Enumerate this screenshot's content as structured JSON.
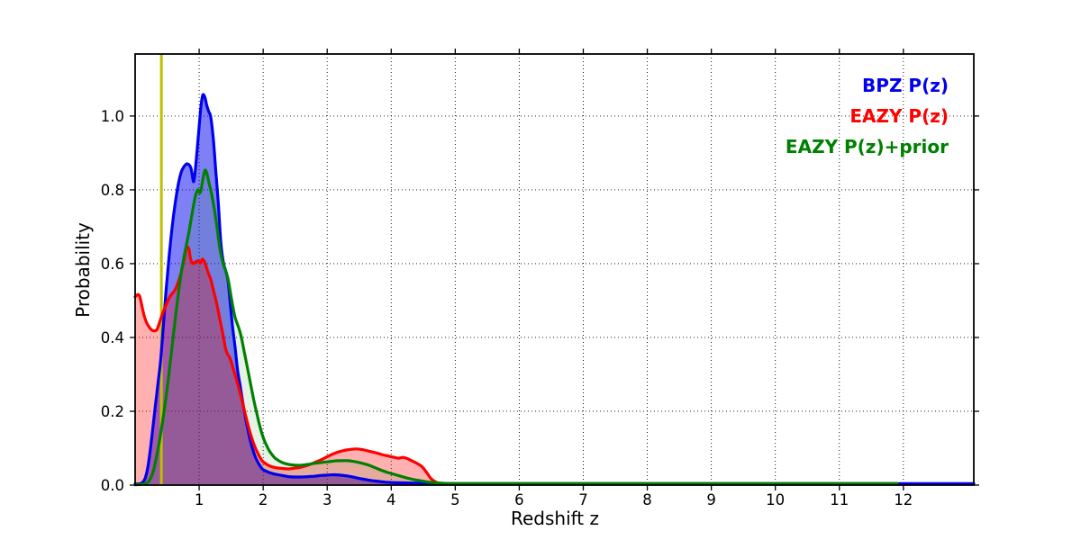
{
  "chart_data": {
    "type": "area",
    "title": "",
    "xlabel": "Redshift z",
    "ylabel": "Probability",
    "xlim": [
      0,
      13.1
    ],
    "ylim": [
      0,
      1.168
    ],
    "xticks": [
      1,
      2,
      3,
      4,
      5,
      6,
      7,
      8,
      9,
      10,
      11,
      12
    ],
    "yticks": [
      0.0,
      0.2,
      0.4,
      0.6,
      0.8,
      1.0
    ],
    "grid": {
      "visible": true,
      "style": "dotted",
      "color": "#000000",
      "axes": "both"
    },
    "background_color": "#ffffff",
    "axis_color": "#000000",
    "legend": {
      "position": "upper-right",
      "frame": false,
      "entries": [
        {
          "label": "BPZ P(z)",
          "color": "#0000ee"
        },
        {
          "label": "EAZY P(z)",
          "color": "#ff0000"
        },
        {
          "label": "EAZY P(z)+prior",
          "color": "#008000"
        }
      ]
    },
    "marker_line": {
      "z": 0.41,
      "color": "#bfbf00",
      "orientation": "vertical"
    },
    "series": [
      {
        "name": "BPZ P(z)",
        "color": "#0000ee",
        "fill_opacity": 0.5,
        "peak": {
          "z": 1.06,
          "p": 1.058
        },
        "points": [
          [
            0,
            0.003
          ],
          [
            0.08,
            0.004
          ],
          [
            0.12,
            0.008
          ],
          [
            0.16,
            0.02
          ],
          [
            0.2,
            0.05
          ],
          [
            0.24,
            0.1
          ],
          [
            0.28,
            0.16
          ],
          [
            0.32,
            0.22
          ],
          [
            0.36,
            0.28
          ],
          [
            0.4,
            0.34
          ],
          [
            0.44,
            0.43
          ],
          [
            0.48,
            0.52
          ],
          [
            0.52,
            0.6
          ],
          [
            0.56,
            0.67
          ],
          [
            0.6,
            0.73
          ],
          [
            0.64,
            0.78
          ],
          [
            0.68,
            0.82
          ],
          [
            0.72,
            0.848
          ],
          [
            0.76,
            0.862
          ],
          [
            0.8,
            0.87
          ],
          [
            0.84,
            0.868
          ],
          [
            0.87,
            0.86
          ],
          [
            0.89,
            0.842
          ],
          [
            0.91,
            0.822
          ],
          [
            0.93,
            0.838
          ],
          [
            0.96,
            0.89
          ],
          [
            0.99,
            0.952
          ],
          [
            1.02,
            1.012
          ],
          [
            1.04,
            1.042
          ],
          [
            1.06,
            1.058
          ],
          [
            1.09,
            1.05
          ],
          [
            1.12,
            1.028
          ],
          [
            1.15,
            1.012
          ],
          [
            1.18,
            0.998
          ],
          [
            1.22,
            0.94
          ],
          [
            1.26,
            0.852
          ],
          [
            1.3,
            0.762
          ],
          [
            1.34,
            0.655
          ],
          [
            1.38,
            0.602
          ],
          [
            1.42,
            0.578
          ],
          [
            1.45,
            0.555
          ],
          [
            1.48,
            0.502
          ],
          [
            1.52,
            0.432
          ],
          [
            1.56,
            0.375
          ],
          [
            1.6,
            0.312
          ],
          [
            1.64,
            0.27
          ],
          [
            1.68,
            0.226
          ],
          [
            1.72,
            0.186
          ],
          [
            1.76,
            0.151
          ],
          [
            1.8,
            0.12
          ],
          [
            1.84,
            0.095
          ],
          [
            1.88,
            0.075
          ],
          [
            1.92,
            0.061
          ],
          [
            1.96,
            0.05
          ],
          [
            2,
            0.042
          ],
          [
            2.1,
            0.034
          ],
          [
            2.2,
            0.029
          ],
          [
            2.3,
            0.026
          ],
          [
            2.4,
            0.023
          ],
          [
            2.5,
            0.022
          ],
          [
            2.6,
            0.022
          ],
          [
            2.7,
            0.023
          ],
          [
            2.8,
            0.024
          ],
          [
            2.9,
            0.026
          ],
          [
            3,
            0.027
          ],
          [
            3.1,
            0.028
          ],
          [
            3.2,
            0.027
          ],
          [
            3.3,
            0.025
          ],
          [
            3.4,
            0.022
          ],
          [
            3.5,
            0.018
          ],
          [
            3.6,
            0.015
          ],
          [
            3.7,
            0.012
          ],
          [
            3.8,
            0.01
          ],
          [
            3.9,
            0.008
          ],
          [
            4,
            0.007
          ],
          [
            4.2,
            0.006
          ],
          [
            4.5,
            0.005
          ],
          [
            5,
            0.004
          ],
          [
            6,
            0.004
          ],
          [
            8,
            0.004
          ],
          [
            10,
            0.004
          ],
          [
            12,
            0.004
          ],
          [
            13.1,
            0.004
          ]
        ]
      },
      {
        "name": "EAZY P(z)",
        "color": "#ff0000",
        "fill_opacity": 0.31,
        "peak": {
          "z": 0.81,
          "p": 0.645
        },
        "points": [
          [
            0,
            0.51
          ],
          [
            0.04,
            0.516
          ],
          [
            0.07,
            0.512
          ],
          [
            0.1,
            0.49
          ],
          [
            0.14,
            0.46
          ],
          [
            0.18,
            0.44
          ],
          [
            0.22,
            0.428
          ],
          [
            0.26,
            0.42
          ],
          [
            0.3,
            0.418
          ],
          [
            0.34,
            0.421
          ],
          [
            0.38,
            0.44
          ],
          [
            0.41,
            0.455
          ],
          [
            0.44,
            0.47
          ],
          [
            0.48,
            0.487
          ],
          [
            0.52,
            0.503
          ],
          [
            0.56,
            0.515
          ],
          [
            0.6,
            0.523
          ],
          [
            0.64,
            0.535
          ],
          [
            0.68,
            0.553
          ],
          [
            0.72,
            0.577
          ],
          [
            0.76,
            0.607
          ],
          [
            0.79,
            0.633
          ],
          [
            0.81,
            0.645
          ],
          [
            0.84,
            0.64
          ],
          [
            0.86,
            0.618
          ],
          [
            0.88,
            0.606
          ],
          [
            0.91,
            0.6
          ],
          [
            0.94,
            0.604
          ],
          [
            0.98,
            0.608
          ],
          [
            1.02,
            0.602
          ],
          [
            1.05,
            0.612
          ],
          [
            1.08,
            0.606
          ],
          [
            1.11,
            0.592
          ],
          [
            1.14,
            0.576
          ],
          [
            1.18,
            0.558
          ],
          [
            1.22,
            0.53
          ],
          [
            1.26,
            0.503
          ],
          [
            1.3,
            0.47
          ],
          [
            1.34,
            0.435
          ],
          [
            1.38,
            0.4
          ],
          [
            1.41,
            0.372
          ],
          [
            1.44,
            0.356
          ],
          [
            1.47,
            0.348
          ],
          [
            1.5,
            0.335
          ],
          [
            1.53,
            0.317
          ],
          [
            1.56,
            0.3
          ],
          [
            1.6,
            0.275
          ],
          [
            1.64,
            0.25
          ],
          [
            1.68,
            0.222
          ],
          [
            1.72,
            0.193
          ],
          [
            1.76,
            0.165
          ],
          [
            1.8,
            0.14
          ],
          [
            1.84,
            0.118
          ],
          [
            1.88,
            0.1
          ],
          [
            1.92,
            0.085
          ],
          [
            1.96,
            0.072
          ],
          [
            2,
            0.063
          ],
          [
            2.1,
            0.052
          ],
          [
            2.2,
            0.047
          ],
          [
            2.3,
            0.045
          ],
          [
            2.4,
            0.044
          ],
          [
            2.5,
            0.046
          ],
          [
            2.6,
            0.049
          ],
          [
            2.7,
            0.054
          ],
          [
            2.8,
            0.061
          ],
          [
            2.9,
            0.068
          ],
          [
            3,
            0.077
          ],
          [
            3.1,
            0.085
          ],
          [
            3.2,
            0.091
          ],
          [
            3.3,
            0.095
          ],
          [
            3.44,
            0.098
          ],
          [
            3.55,
            0.096
          ],
          [
            3.65,
            0.092
          ],
          [
            3.75,
            0.088
          ],
          [
            3.85,
            0.083
          ],
          [
            3.95,
            0.079
          ],
          [
            4.05,
            0.075
          ],
          [
            4.12,
            0.073
          ],
          [
            4.18,
            0.075
          ],
          [
            4.25,
            0.072
          ],
          [
            4.32,
            0.066
          ],
          [
            4.4,
            0.059
          ],
          [
            4.48,
            0.05
          ],
          [
            4.55,
            0.035
          ],
          [
            4.62,
            0.018
          ],
          [
            4.7,
            0.008
          ],
          [
            4.8,
            0.004
          ],
          [
            5,
            0.0035
          ],
          [
            6,
            0.0035
          ],
          [
            8,
            0.0035
          ],
          [
            10,
            0.0035
          ],
          [
            11.9,
            0.0035
          ]
        ]
      },
      {
        "name": "EAZY P(z)+prior",
        "color": "#008000",
        "fill_opacity": 0.1,
        "peak": {
          "z": 1.09,
          "p": 0.853
        },
        "points": [
          [
            0,
            0.001
          ],
          [
            0.1,
            0.002
          ],
          [
            0.16,
            0.004
          ],
          [
            0.2,
            0.008
          ],
          [
            0.24,
            0.018
          ],
          [
            0.28,
            0.035
          ],
          [
            0.32,
            0.065
          ],
          [
            0.36,
            0.1
          ],
          [
            0.4,
            0.14
          ],
          [
            0.44,
            0.185
          ],
          [
            0.48,
            0.235
          ],
          [
            0.52,
            0.29
          ],
          [
            0.56,
            0.35
          ],
          [
            0.6,
            0.41
          ],
          [
            0.64,
            0.47
          ],
          [
            0.68,
            0.525
          ],
          [
            0.72,
            0.575
          ],
          [
            0.76,
            0.615
          ],
          [
            0.8,
            0.65
          ],
          [
            0.84,
            0.685
          ],
          [
            0.88,
            0.725
          ],
          [
            0.92,
            0.765
          ],
          [
            0.95,
            0.788
          ],
          [
            0.98,
            0.8
          ],
          [
            1.01,
            0.792
          ],
          [
            1.03,
            0.8
          ],
          [
            1.06,
            0.83
          ],
          [
            1.09,
            0.853
          ],
          [
            1.12,
            0.845
          ],
          [
            1.15,
            0.822
          ],
          [
            1.18,
            0.8
          ],
          [
            1.21,
            0.775
          ],
          [
            1.24,
            0.745
          ],
          [
            1.27,
            0.71
          ],
          [
            1.3,
            0.67
          ],
          [
            1.33,
            0.635
          ],
          [
            1.36,
            0.61
          ],
          [
            1.39,
            0.592
          ],
          [
            1.42,
            0.578
          ],
          [
            1.45,
            0.56
          ],
          [
            1.48,
            0.53
          ],
          [
            1.52,
            0.49
          ],
          [
            1.56,
            0.455
          ],
          [
            1.6,
            0.435
          ],
          [
            1.63,
            0.42
          ],
          [
            1.66,
            0.4
          ],
          [
            1.7,
            0.365
          ],
          [
            1.74,
            0.33
          ],
          [
            1.78,
            0.295
          ],
          [
            1.82,
            0.26
          ],
          [
            1.86,
            0.225
          ],
          [
            1.9,
            0.195
          ],
          [
            1.94,
            0.165
          ],
          [
            1.98,
            0.14
          ],
          [
            2.02,
            0.12
          ],
          [
            2.06,
            0.105
          ],
          [
            2.1,
            0.092
          ],
          [
            2.15,
            0.08
          ],
          [
            2.2,
            0.071
          ],
          [
            2.3,
            0.061
          ],
          [
            2.4,
            0.056
          ],
          [
            2.5,
            0.054
          ],
          [
            2.6,
            0.054
          ],
          [
            2.7,
            0.056
          ],
          [
            2.8,
            0.059
          ],
          [
            2.9,
            0.061
          ],
          [
            3,
            0.063
          ],
          [
            3.1,
            0.065
          ],
          [
            3.2,
            0.066
          ],
          [
            3.32,
            0.066
          ],
          [
            3.45,
            0.063
          ],
          [
            3.55,
            0.059
          ],
          [
            3.65,
            0.054
          ],
          [
            3.75,
            0.047
          ],
          [
            3.85,
            0.04
          ],
          [
            3.95,
            0.034
          ],
          [
            4.05,
            0.029
          ],
          [
            4.15,
            0.024
          ],
          [
            4.25,
            0.019
          ],
          [
            4.35,
            0.015
          ],
          [
            4.45,
            0.012
          ],
          [
            4.55,
            0.009
          ],
          [
            4.65,
            0.007
          ],
          [
            4.8,
            0.005
          ],
          [
            5,
            0.004
          ],
          [
            6,
            0.004
          ],
          [
            8,
            0.004
          ],
          [
            10,
            0.004
          ],
          [
            11.9,
            0.004
          ]
        ]
      }
    ]
  }
}
